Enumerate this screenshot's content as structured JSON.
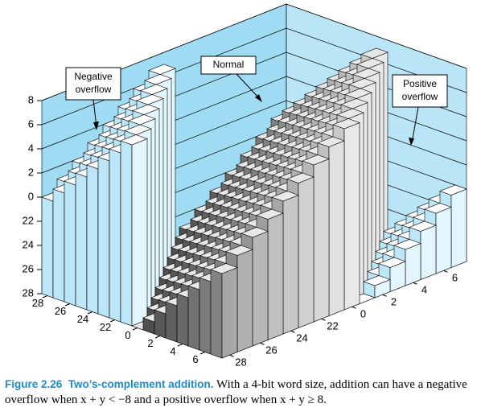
{
  "chart_data": {
    "type": "bar3d",
    "x": [
      -8,
      -7,
      -6,
      -5,
      -4,
      -3,
      -2,
      -1,
      0,
      1,
      2,
      3,
      4,
      5,
      6,
      7
    ],
    "y": [
      -8,
      -7,
      -6,
      -5,
      -4,
      -3,
      -2,
      -1,
      0,
      1,
      2,
      3,
      4,
      5,
      6,
      7
    ],
    "values": [
      [
        0,
        1,
        2,
        3,
        4,
        5,
        6,
        7,
        -8,
        -7,
        -6,
        -5,
        -4,
        -3,
        -2,
        -1
      ],
      [
        1,
        2,
        3,
        4,
        5,
        6,
        7,
        -8,
        -7,
        -6,
        -5,
        -4,
        -3,
        -2,
        -1,
        0
      ],
      [
        2,
        3,
        4,
        5,
        6,
        7,
        -8,
        -7,
        -6,
        -5,
        -4,
        -3,
        -2,
        -1,
        0,
        1
      ],
      [
        3,
        4,
        5,
        6,
        7,
        -8,
        -7,
        -6,
        -5,
        -4,
        -3,
        -2,
        -1,
        0,
        1,
        2
      ],
      [
        4,
        5,
        6,
        7,
        -8,
        -7,
        -6,
        -5,
        -4,
        -3,
        -2,
        -1,
        0,
        1,
        2,
        3
      ],
      [
        5,
        6,
        7,
        -8,
        -7,
        -6,
        -5,
        -4,
        -3,
        -2,
        -1,
        0,
        1,
        2,
        3,
        4
      ],
      [
        6,
        7,
        -8,
        -7,
        -6,
        -5,
        -4,
        -3,
        -2,
        -1,
        0,
        1,
        2,
        3,
        4,
        5
      ],
      [
        7,
        -8,
        -7,
        -6,
        -5,
        -4,
        -3,
        -2,
        -1,
        0,
        1,
        2,
        3,
        4,
        5,
        6
      ],
      [
        -8,
        -7,
        -6,
        -5,
        -4,
        -3,
        -2,
        -1,
        0,
        1,
        2,
        3,
        4,
        5,
        6,
        7
      ],
      [
        -7,
        -6,
        -5,
        -4,
        -3,
        -2,
        -1,
        0,
        1,
        2,
        3,
        4,
        5,
        6,
        7,
        -8
      ],
      [
        -6,
        -5,
        -4,
        -3,
        -2,
        -1,
        0,
        1,
        2,
        3,
        4,
        5,
        6,
        7,
        -8,
        -7
      ],
      [
        -5,
        -4,
        -3,
        -2,
        -1,
        0,
        1,
        2,
        3,
        4,
        5,
        6,
        7,
        -8,
        -7,
        -6
      ],
      [
        -4,
        -3,
        -2,
        -1,
        0,
        1,
        2,
        3,
        4,
        5,
        6,
        7,
        -8,
        -7,
        -6,
        -5
      ],
      [
        -3,
        -2,
        -1,
        0,
        1,
        2,
        3,
        4,
        5,
        6,
        7,
        -8,
        -7,
        -6,
        -5,
        -4
      ],
      [
        -2,
        -1,
        0,
        1,
        2,
        3,
        4,
        5,
        6,
        7,
        -8,
        -7,
        -6,
        -5,
        -4,
        -3
      ],
      [
        -1,
        0,
        1,
        2,
        3,
        4,
        5,
        6,
        7,
        -8,
        -7,
        -6,
        -5,
        -4,
        -3,
        -2
      ]
    ],
    "xlim": [
      -8,
      8
    ],
    "ylim": [
      -8,
      8
    ],
    "zlim": [
      -8,
      8
    ],
    "xticks": [
      {
        "value": -8,
        "label": "28"
      },
      {
        "value": -6,
        "label": "26"
      },
      {
        "value": -4,
        "label": "24"
      },
      {
        "value": -2,
        "label": "22"
      },
      0,
      2,
      4,
      6
    ],
    "yticks": [
      {
        "value": -8,
        "label": "28"
      },
      {
        "value": -6,
        "label": "26"
      },
      {
        "value": -4,
        "label": "24"
      },
      {
        "value": -2,
        "label": "22"
      },
      0,
      2,
      4,
      6
    ],
    "zticks": [
      {
        "value": -8,
        "label": "28"
      },
      {
        "value": -6,
        "label": "26"
      },
      {
        "value": -4,
        "label": "24"
      },
      {
        "value": -2,
        "label": "22"
      },
      0,
      2,
      4,
      6,
      8
    ],
    "normal_color": "#8a8a8a",
    "overflow_color": "#bde7f8",
    "wall_color": "#7fd0f0",
    "annotations": [
      {
        "lines": [
          "Negative",
          "overflow"
        ]
      },
      {
        "lines": [
          "Normal"
        ]
      },
      {
        "lines": [
          "Positive",
          "overflow"
        ]
      }
    ],
    "caption": {
      "label": "Figure 2.26",
      "title": "Two’s-complement addition.",
      "text": "With a 4-bit word size, addition can have a negative overflow when x + y < −8 and a positive overflow when x + y ≥ 8."
    }
  }
}
